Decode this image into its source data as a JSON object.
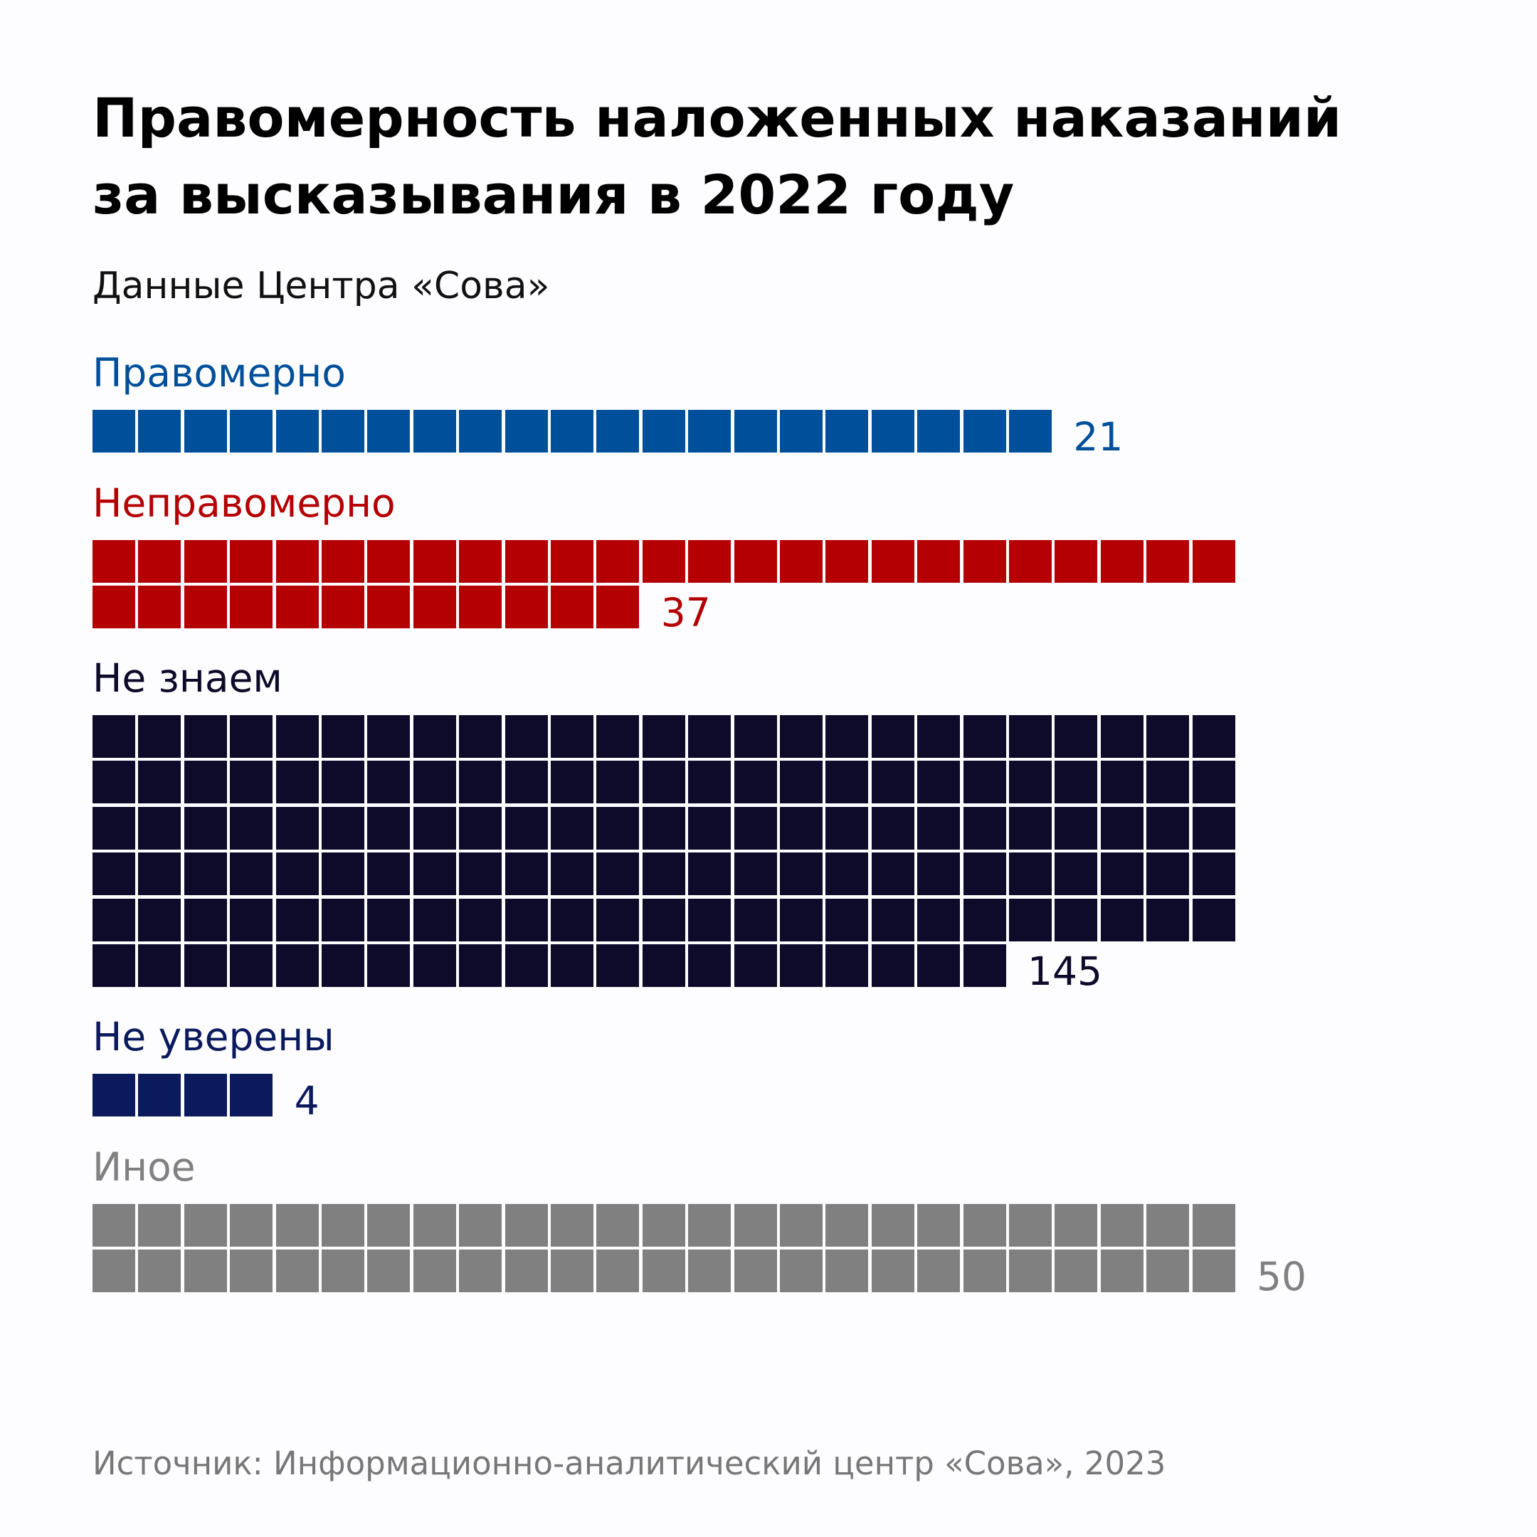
{
  "title_line1": "Правомерность наложенных наказаний",
  "title_line2": "за высказывания в 2022 году",
  "subtitle": "Данные Центра «Сова»",
  "footer": "Источник: Информационно-аналитический центр «Сова», 2023",
  "chart_data": {
    "type": "waffle",
    "title": "Правомерность наложенных наказаний за высказывания в 2022 году",
    "subtitle": "Данные Центра «Сова»",
    "units_per_row": 25,
    "categories": [
      "Правомерно",
      "Неправомерно",
      "Не знаем",
      "Не уверены",
      "Иное"
    ],
    "values": [
      21,
      37,
      145,
      4,
      50
    ],
    "colors": [
      "#004f9a",
      "#b50003",
      "#0d0a2a",
      "#0a1a5c",
      "#808080"
    ],
    "value_labels": [
      "21",
      "37",
      "145",
      "4",
      "50"
    ]
  }
}
